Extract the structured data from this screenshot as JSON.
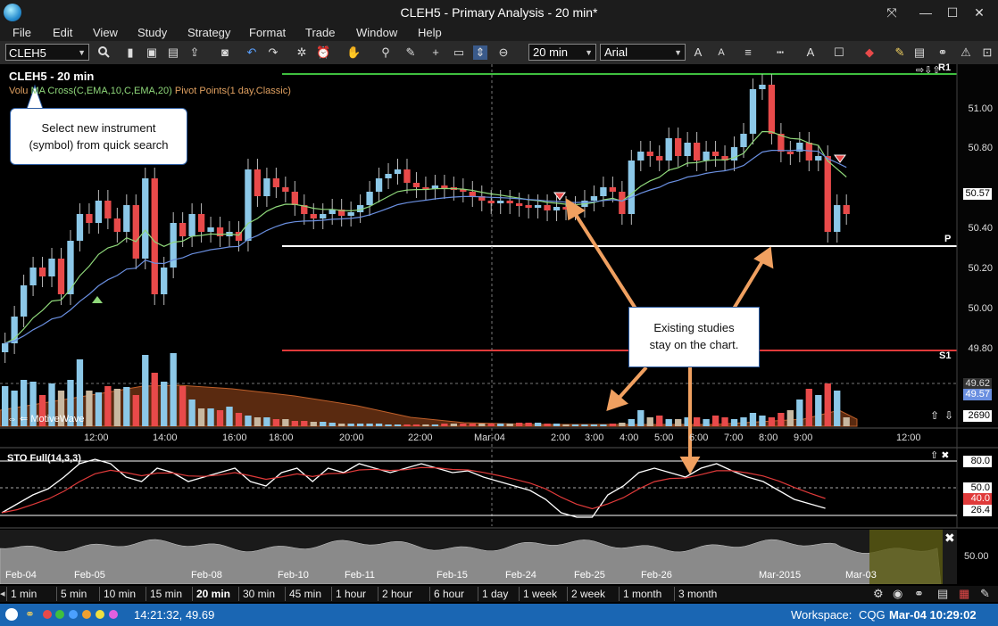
{
  "window": {
    "title": "CLEH5 - Primary Analysis - 20 min*"
  },
  "menu": [
    "File",
    "Edit",
    "View",
    "Study",
    "Strategy",
    "Format",
    "Trade",
    "Window",
    "Help"
  ],
  "toolbar": {
    "symbol": "CLEH5",
    "interval": "20 min",
    "font": "Arial"
  },
  "chart": {
    "title": "CLEH5 - 20 min",
    "study_prefix": "Volu",
    "study_green": "MA Cross(C,EMA,10,C,EMA,20)",
    "study_rest": "Pivot Points(1 day,Classic)",
    "price_ticks": [
      "51.00",
      "50.80",
      "50.60",
      "50.40",
      "50.20",
      "50.00",
      "49.80"
    ],
    "last_price": "50.57",
    "vol_price_1": "49.62",
    "vol_price_2": "49.57",
    "volume": "2690",
    "pivot_labels": {
      "r1": "R1",
      "p": "P",
      "s1": "S1"
    },
    "time_labels": [
      "12:00",
      "14:00",
      "16:00",
      "18:00",
      "20:00",
      "22:00",
      "Mar-04",
      "2:00",
      "3:00",
      "4:00",
      "5:00",
      "6:00",
      "7:00",
      "8:00",
      "9:00",
      "12:00"
    ],
    "motivewave": "MotiveWave"
  },
  "callouts": {
    "quick_search_line1": "Select new instrument",
    "quick_search_line2": "(symbol) from quick search",
    "studies_line1": "Existing studies",
    "studies_line2": "stay on the chart."
  },
  "stochastic": {
    "label": "STO Full(14,3,3)",
    "ticks": [
      "80.0",
      "50.0",
      "40.0",
      "26.4"
    ]
  },
  "navigator": {
    "dates": [
      "Feb-04",
      "Feb-05",
      "Feb-08",
      "Feb-10",
      "Feb-11",
      "Feb-15",
      "Feb-24",
      "Feb-25",
      "Feb-26",
      "Mar-2015",
      "Mar-03"
    ],
    "value": "50.00"
  },
  "timeframes": [
    "1 min",
    "5 min",
    "10 min",
    "15 min",
    "20 min",
    "30 min",
    "45 min",
    "1 hour",
    "2 hour",
    "6 hour",
    "1 day",
    "1 week",
    "2 week",
    "1 month",
    "3 month"
  ],
  "active_timeframe": "20 min",
  "status": {
    "time_price": "14:21:32, 49.69",
    "workspace_label": "Workspace:",
    "workspace": "CQG",
    "datetime": "Mar-04 10:29:02"
  },
  "colors": {
    "bull": "#8cc8e8",
    "bear": "#e84a4a",
    "ema_fast": "#8fd87a",
    "ema_slow": "#6a8fe0",
    "pivot_r1": "#3fbf3f",
    "pivot_p": "#ffffff",
    "pivot_s1": "#e03a3a",
    "callout_arrow": "#f0a060",
    "status": "#1a66b3"
  },
  "icons": [
    "search-icon",
    "new-icon",
    "save-icon",
    "print-icon",
    "camera-icon",
    "undo-icon",
    "redo-icon",
    "hand-icon",
    "zoom-icon",
    "crosshair-icon",
    "font-size-icon",
    "line-style-icon",
    "color-icon"
  ]
}
